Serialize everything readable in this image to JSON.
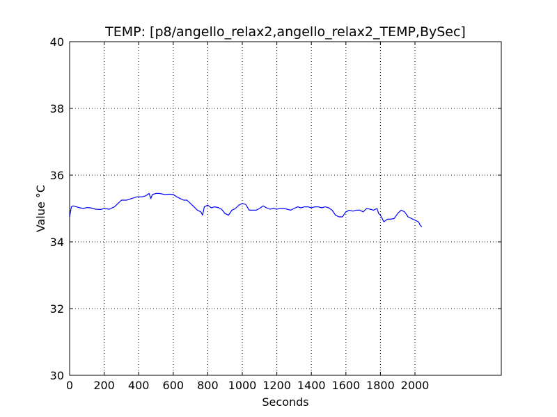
{
  "chart_data": {
    "type": "line",
    "title": "TEMP: [p8/angello_relax2,angello_relax2_TEMP,BySec]",
    "xlabel": "Seconds",
    "ylabel": "Value °C",
    "xlim": [
      0,
      2500
    ],
    "ylim": [
      30,
      40
    ],
    "x_ticks": [
      0,
      200,
      400,
      600,
      800,
      1000,
      1200,
      1400,
      1600,
      1800,
      2000
    ],
    "y_ticks": [
      30,
      32,
      34,
      36,
      38,
      40
    ],
    "grid": true,
    "series_color": "#0000ff",
    "x": [
      0,
      10,
      20,
      40,
      60,
      80,
      100,
      120,
      150,
      180,
      200,
      230,
      260,
      280,
      300,
      330,
      360,
      390,
      420,
      440,
      460,
      470,
      480,
      500,
      520,
      550,
      580,
      600,
      620,
      640,
      660,
      680,
      700,
      720,
      740,
      760,
      770,
      780,
      800,
      820,
      840,
      860,
      880,
      900,
      920,
      940,
      960,
      980,
      1000,
      1020,
      1040,
      1060,
      1080,
      1100,
      1120,
      1140,
      1160,
      1180,
      1200,
      1220,
      1240,
      1260,
      1280,
      1300,
      1320,
      1340,
      1360,
      1380,
      1400,
      1420,
      1440,
      1460,
      1480,
      1500,
      1520,
      1540,
      1560,
      1580,
      1600,
      1620,
      1640,
      1660,
      1680,
      1700,
      1720,
      1740,
      1760,
      1780,
      1790,
      1800,
      1810,
      1820,
      1840,
      1860,
      1880,
      1900,
      1920,
      1940,
      1960,
      1980,
      2000,
      2020,
      2030,
      2040
    ],
    "values": [
      34.75,
      35.05,
      35.08,
      35.05,
      35.02,
      35.0,
      35.03,
      35.02,
      34.98,
      34.97,
      35.0,
      34.98,
      35.05,
      35.15,
      35.25,
      35.25,
      35.3,
      35.35,
      35.35,
      35.38,
      35.45,
      35.3,
      35.42,
      35.45,
      35.45,
      35.42,
      35.43,
      35.42,
      35.35,
      35.3,
      35.25,
      35.25,
      35.15,
      35.05,
      34.95,
      34.9,
      34.8,
      35.05,
      35.1,
      35.02,
      35.05,
      35.03,
      34.98,
      34.85,
      34.8,
      34.95,
      35.0,
      35.1,
      35.15,
      35.12,
      34.95,
      34.95,
      34.95,
      35.0,
      35.08,
      35.02,
      34.98,
      35.0,
      34.98,
      35.0,
      35.0,
      34.98,
      34.95,
      35.0,
      35.05,
      35.02,
      35.05,
      35.05,
      35.02,
      35.05,
      35.05,
      35.02,
      35.05,
      35.02,
      34.95,
      34.8,
      34.75,
      34.75,
      34.9,
      34.95,
      34.92,
      34.95,
      34.95,
      34.9,
      35.0,
      34.98,
      34.95,
      35.0,
      34.85,
      34.8,
      34.7,
      34.6,
      34.68,
      34.68,
      34.7,
      34.85,
      34.95,
      34.9,
      34.75,
      34.7,
      34.65,
      34.6,
      34.5,
      34.45
    ]
  }
}
